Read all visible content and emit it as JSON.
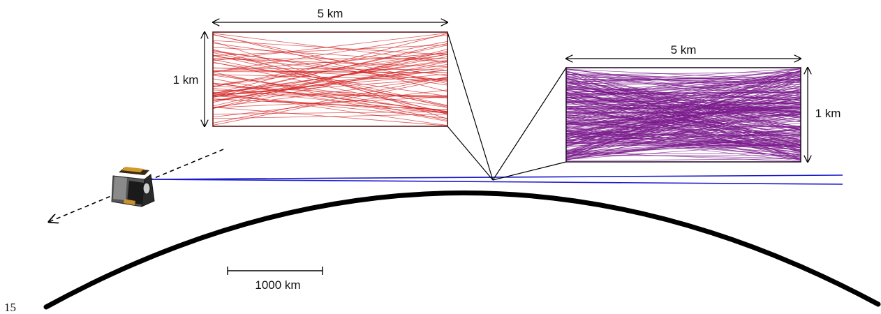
{
  "page_number": "15",
  "left_box": {
    "width_label": "5 km",
    "height_label": "1 km",
    "line_color": "#d42020",
    "border_color": "#5a1a1a",
    "line_count": 70
  },
  "right_box": {
    "width_label": "5 km",
    "height_label": "1 km",
    "line_color": "#7b1a8c",
    "border_color": "#2a1030",
    "line_count": 260
  },
  "scale_bar": {
    "label": "1000 km"
  },
  "colors": {
    "earth_limb": "#000000",
    "line_of_sight": "#1a1acc",
    "leader_lines": "#000000"
  },
  "icons": {
    "satellite": "satellite-icon",
    "orbit_arrow": "dashed-arrow-icon"
  }
}
